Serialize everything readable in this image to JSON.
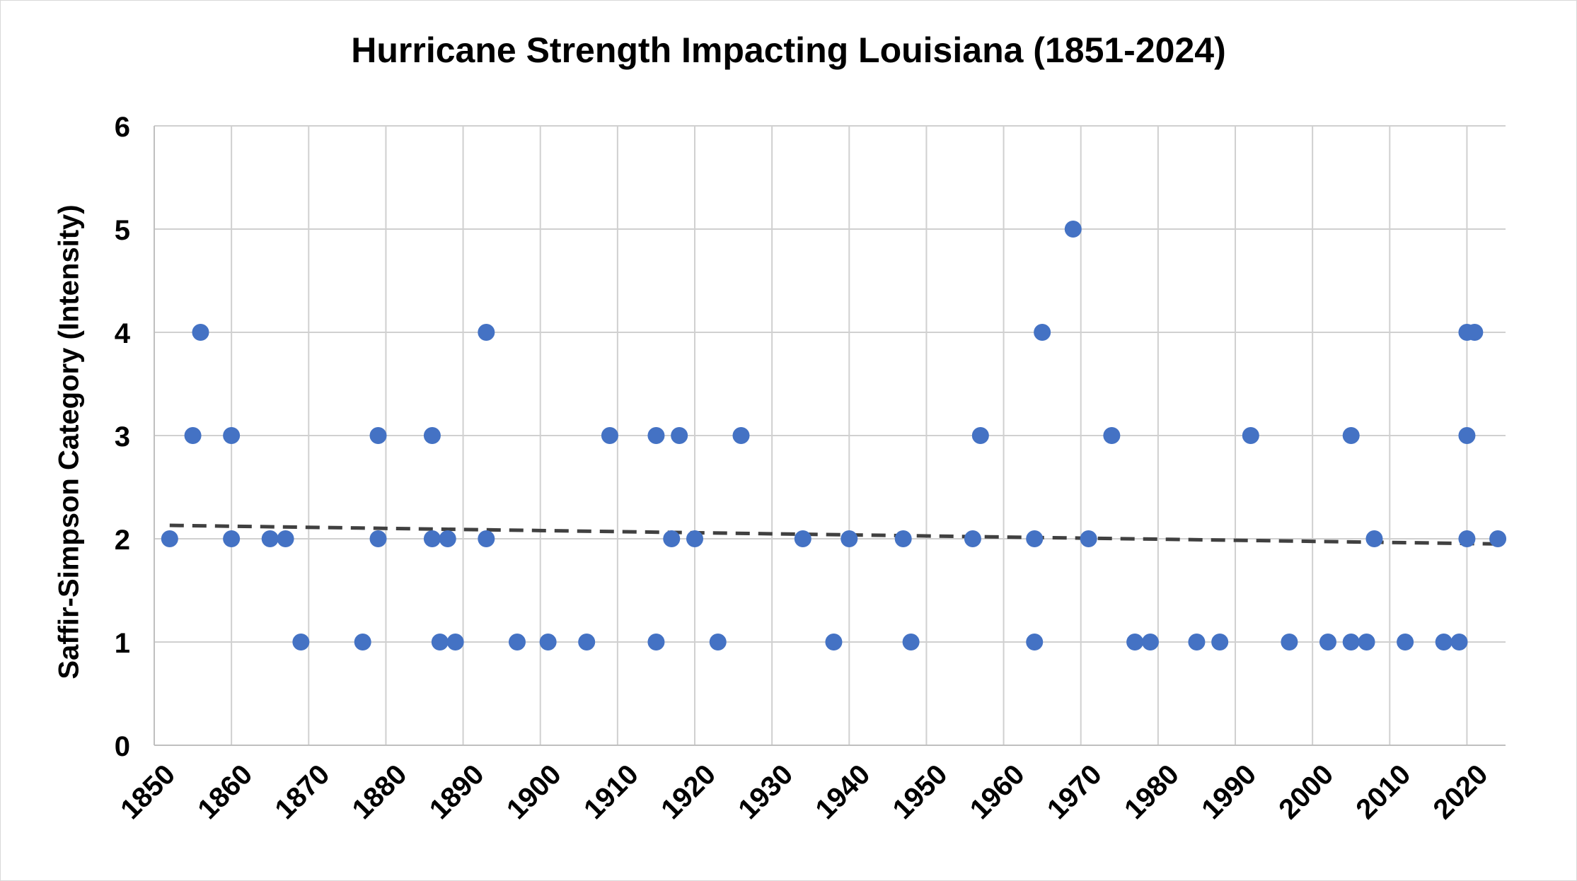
{
  "chart_data": {
    "type": "scatter",
    "title": "Hurricane Strength Impacting Louisiana (1851-2024)",
    "xlabel": "",
    "ylabel": "Saffir-Simpson Category (Intensity)",
    "xlim": [
      1850,
      2025
    ],
    "ylim": [
      0,
      6
    ],
    "x_ticks": [
      1850,
      1860,
      1870,
      1880,
      1890,
      1900,
      1910,
      1920,
      1930,
      1940,
      1950,
      1960,
      1970,
      1980,
      1990,
      2000,
      2010,
      2020
    ],
    "y_ticks": [
      0,
      1,
      2,
      3,
      4,
      5,
      6
    ],
    "grid": true,
    "legend": "none",
    "series_color": "#4472c4",
    "trendline": {
      "style": "dashed",
      "color": "#404040",
      "start": [
        1852,
        2.13
      ],
      "end": [
        2024,
        1.95
      ]
    },
    "points": [
      [
        1852,
        2
      ],
      [
        1855,
        3
      ],
      [
        1856,
        4
      ],
      [
        1860,
        3
      ],
      [
        1860,
        2
      ],
      [
        1865,
        2
      ],
      [
        1867,
        2
      ],
      [
        1869,
        1
      ],
      [
        1877,
        1
      ],
      [
        1879,
        3
      ],
      [
        1879,
        2
      ],
      [
        1886,
        3
      ],
      [
        1886,
        2
      ],
      [
        1887,
        1
      ],
      [
        1888,
        2
      ],
      [
        1889,
        1
      ],
      [
        1893,
        4
      ],
      [
        1893,
        2
      ],
      [
        1897,
        1
      ],
      [
        1901,
        1
      ],
      [
        1906,
        1
      ],
      [
        1909,
        3
      ],
      [
        1915,
        3
      ],
      [
        1915,
        1
      ],
      [
        1917,
        2
      ],
      [
        1918,
        3
      ],
      [
        1920,
        2
      ],
      [
        1923,
        1
      ],
      [
        1926,
        3
      ],
      [
        1934,
        2
      ],
      [
        1938,
        1
      ],
      [
        1940,
        2
      ],
      [
        1947,
        2
      ],
      [
        1948,
        1
      ],
      [
        1956,
        2
      ],
      [
        1957,
        3
      ],
      [
        1964,
        2
      ],
      [
        1964,
        1
      ],
      [
        1965,
        4
      ],
      [
        1969,
        5
      ],
      [
        1971,
        2
      ],
      [
        1974,
        3
      ],
      [
        1977,
        1
      ],
      [
        1979,
        1
      ],
      [
        1985,
        1
      ],
      [
        1988,
        1
      ],
      [
        1992,
        3
      ],
      [
        1997,
        1
      ],
      [
        2002,
        1
      ],
      [
        2005,
        3
      ],
      [
        2005,
        1
      ],
      [
        2007,
        1
      ],
      [
        2008,
        2
      ],
      [
        2012,
        1
      ],
      [
        2017,
        1
      ],
      [
        2019,
        1
      ],
      [
        2020,
        4
      ],
      [
        2020,
        3
      ],
      [
        2020,
        2
      ],
      [
        2021,
        4
      ],
      [
        2024,
        2
      ]
    ]
  }
}
